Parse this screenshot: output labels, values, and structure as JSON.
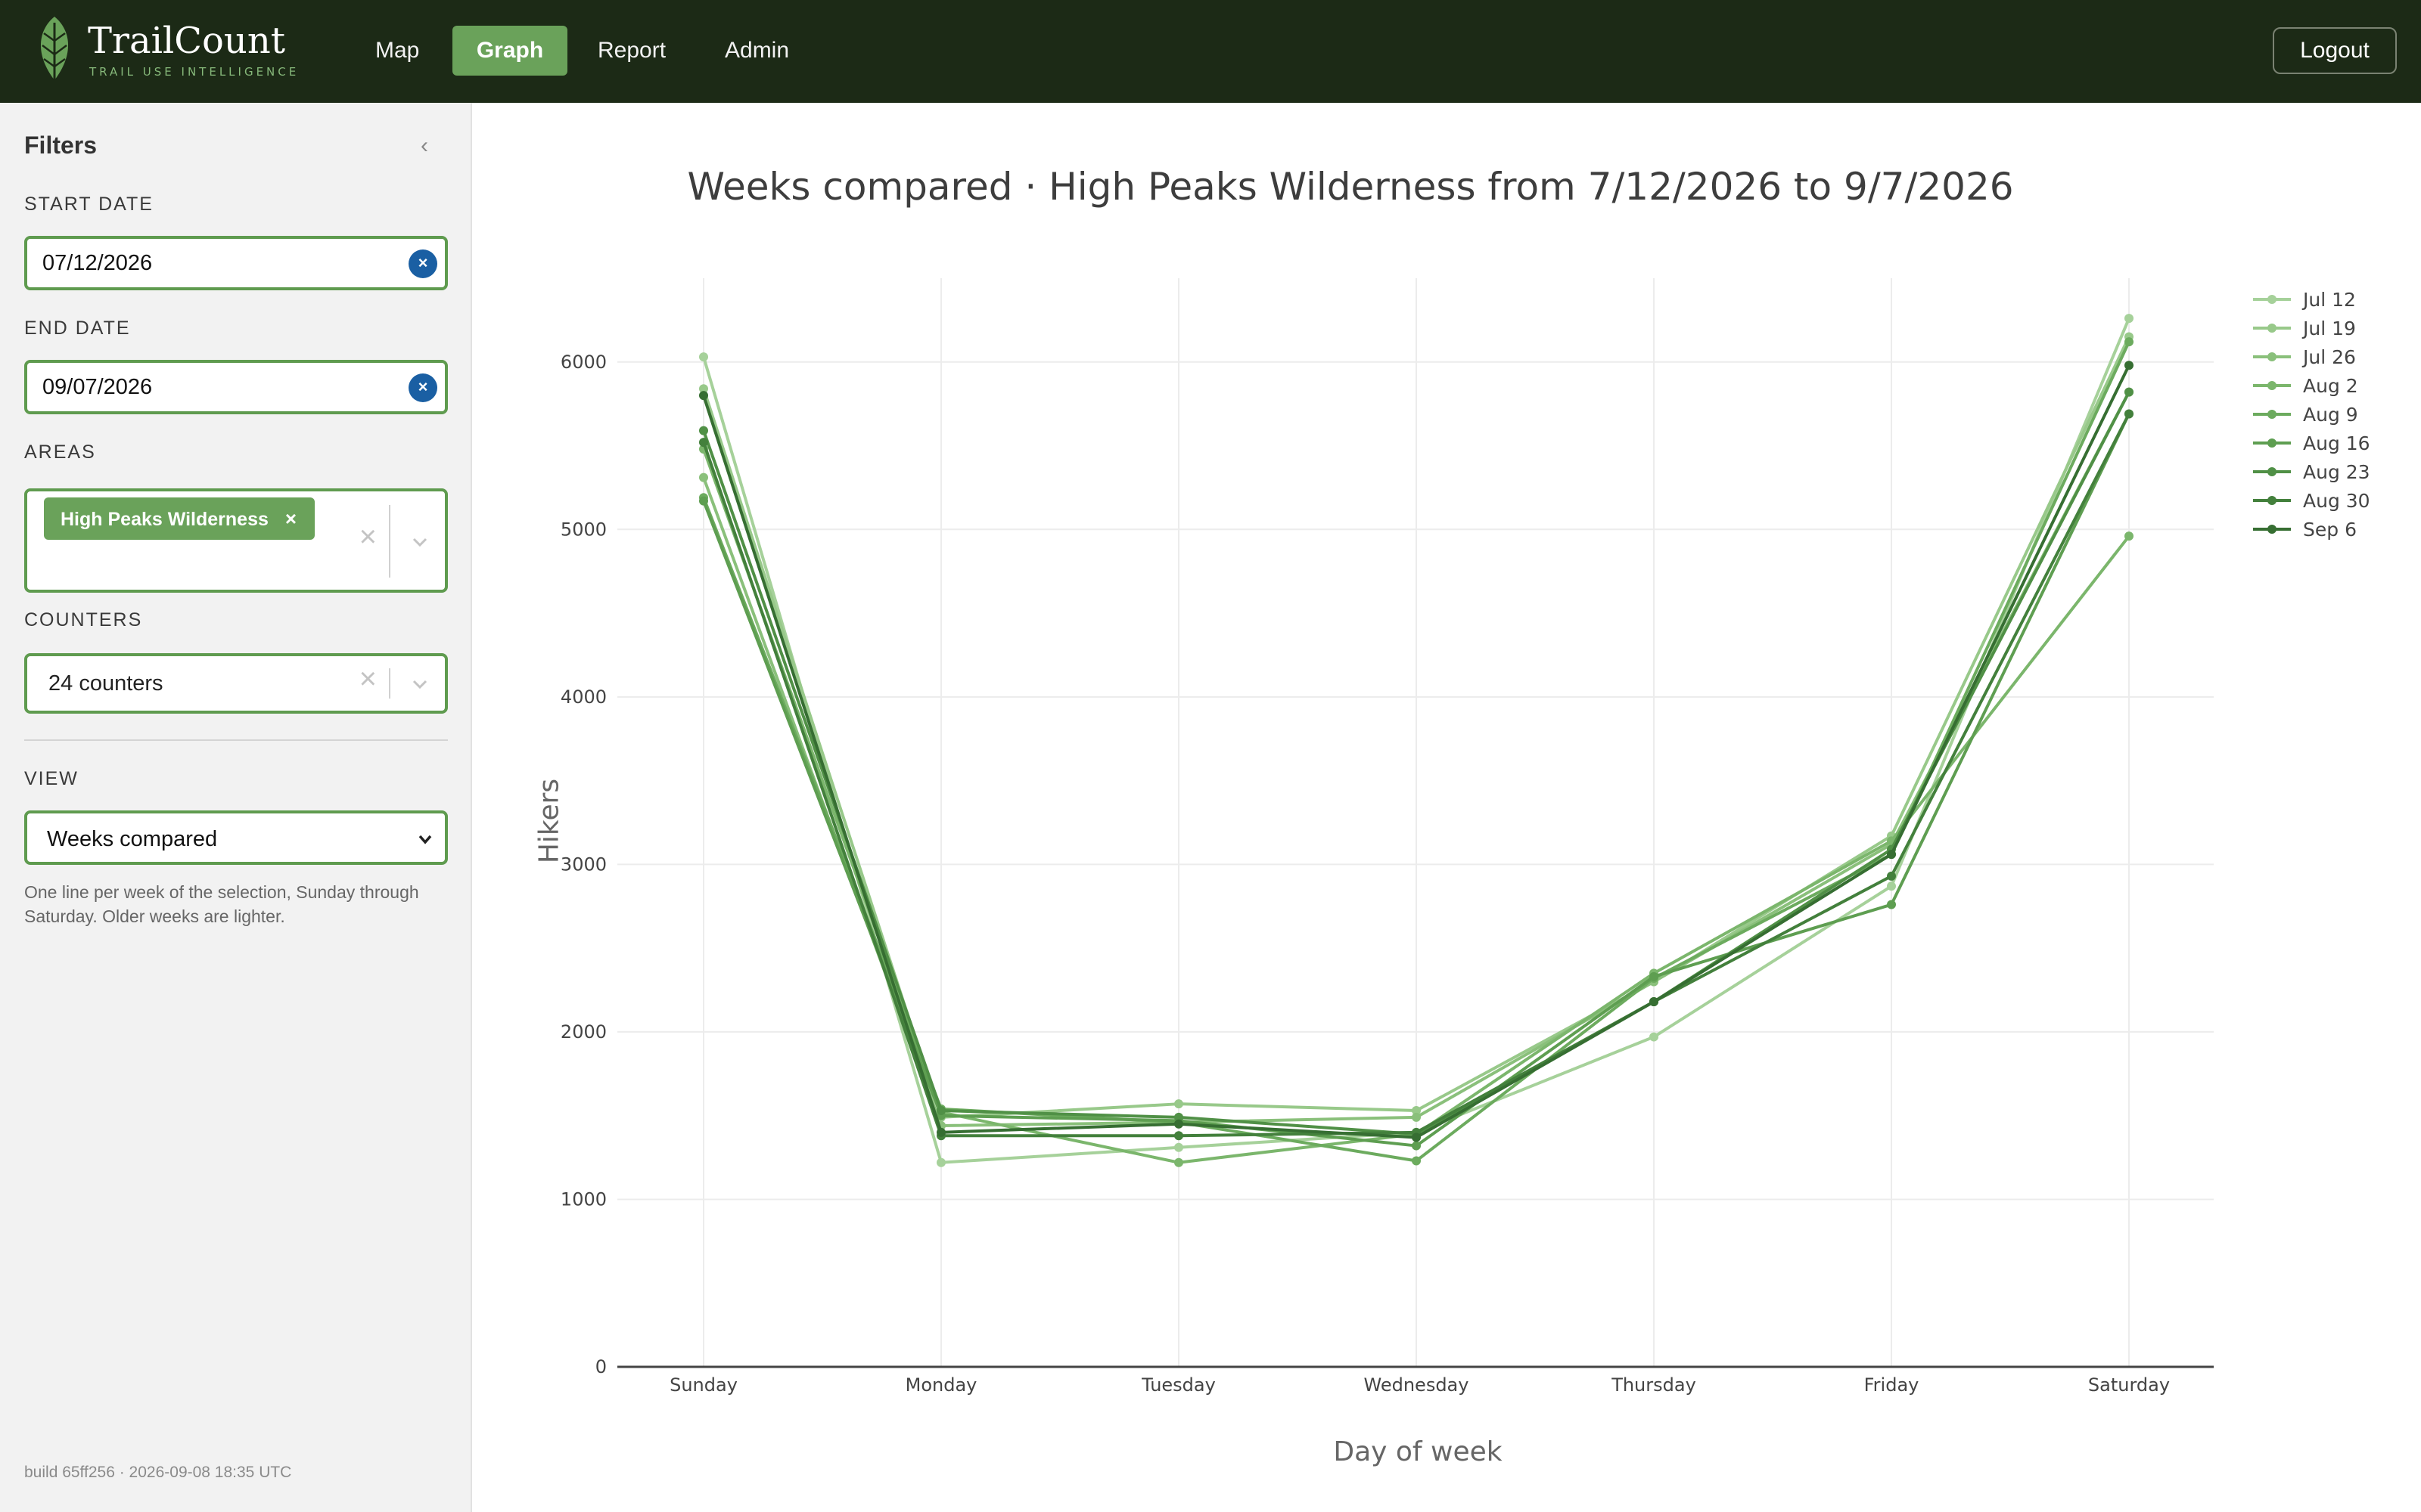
{
  "brand": {
    "name": "TrailCount",
    "tagline": "TRAIL USE INTELLIGENCE"
  },
  "nav": {
    "items": [
      {
        "label": "Map",
        "active": false
      },
      {
        "label": "Graph",
        "active": true
      },
      {
        "label": "Report",
        "active": false
      },
      {
        "label": "Admin",
        "active": false
      }
    ],
    "logout_label": "Logout"
  },
  "sidebar": {
    "title": "Filters",
    "collapse_icon": "‹",
    "start_date": {
      "label": "START DATE",
      "value": "07/12/2026"
    },
    "end_date": {
      "label": "END DATE",
      "value": "09/07/2026"
    },
    "areas": {
      "label": "AREAS",
      "selected": "High Peaks Wilderness"
    },
    "counters": {
      "label": "COUNTERS",
      "value": "24 counters"
    },
    "view": {
      "label": "VIEW",
      "value": "Weeks compared",
      "note": "One line per week of the selection, Sunday through Saturday. Older weeks are lighter."
    },
    "build": "build 65ff256 · 2026-09-08 18:35 UTC"
  },
  "colors": {
    "accent": "#6aa25a",
    "topbar": "#1c2a16",
    "clear_button": "#1a5fa3"
  },
  "icons": {
    "logo": "leaf-icon",
    "clear": "clear-circle-icon",
    "remove": "close-icon",
    "dropdown": "chevron-down-icon",
    "collapse": "chevron-left-icon"
  },
  "chart_data": {
    "type": "line",
    "title": "Weeks compared · High Peaks Wilderness from 7/12/2026 to 9/7/2026",
    "xlabel": "Day of week",
    "ylabel": "Hikers",
    "categories": [
      "Sunday",
      "Monday",
      "Tuesday",
      "Wednesday",
      "Thursday",
      "Friday",
      "Saturday"
    ],
    "ylim": [
      0,
      6500
    ],
    "yticks": [
      0,
      1000,
      2000,
      3000,
      4000,
      5000,
      6000
    ],
    "grid": true,
    "legend_position": "top-right",
    "series": [
      {
        "name": "Jul 12",
        "color": "#a6d19a",
        "values": [
          6030,
          1220,
          1310,
          1400,
          1970,
          2870,
          6260
        ]
      },
      {
        "name": "Jul 19",
        "color": "#98c98a",
        "values": [
          5840,
          1490,
          1570,
          1530,
          2300,
          3170,
          6150
        ]
      },
      {
        "name": "Jul 26",
        "color": "#8ac07b",
        "values": [
          5310,
          1440,
          1460,
          1490,
          2300,
          3120,
          5820
        ]
      },
      {
        "name": "Aug 2",
        "color": "#7bb66c",
        "values": [
          5480,
          1520,
          1220,
          1390,
          2350,
          3140,
          4960
        ]
      },
      {
        "name": "Aug 9",
        "color": "#6cab5e",
        "values": [
          5190,
          1540,
          1460,
          1230,
          2320,
          3060,
          6120
        ]
      },
      {
        "name": "Aug 16",
        "color": "#5e9e51",
        "values": [
          5170,
          1500,
          1470,
          1320,
          2330,
          2760,
          5690
        ]
      },
      {
        "name": "Aug 23",
        "color": "#509046",
        "values": [
          5590,
          1530,
          1490,
          1390,
          2180,
          3090,
          5820
        ]
      },
      {
        "name": "Aug 30",
        "color": "#43803c",
        "values": [
          5520,
          1380,
          1380,
          1400,
          2180,
          2930,
          5690
        ]
      },
      {
        "name": "Sep 6",
        "color": "#366e32",
        "values": [
          5800,
          1400,
          1450,
          1370,
          2180,
          3060,
          5980
        ]
      }
    ]
  }
}
